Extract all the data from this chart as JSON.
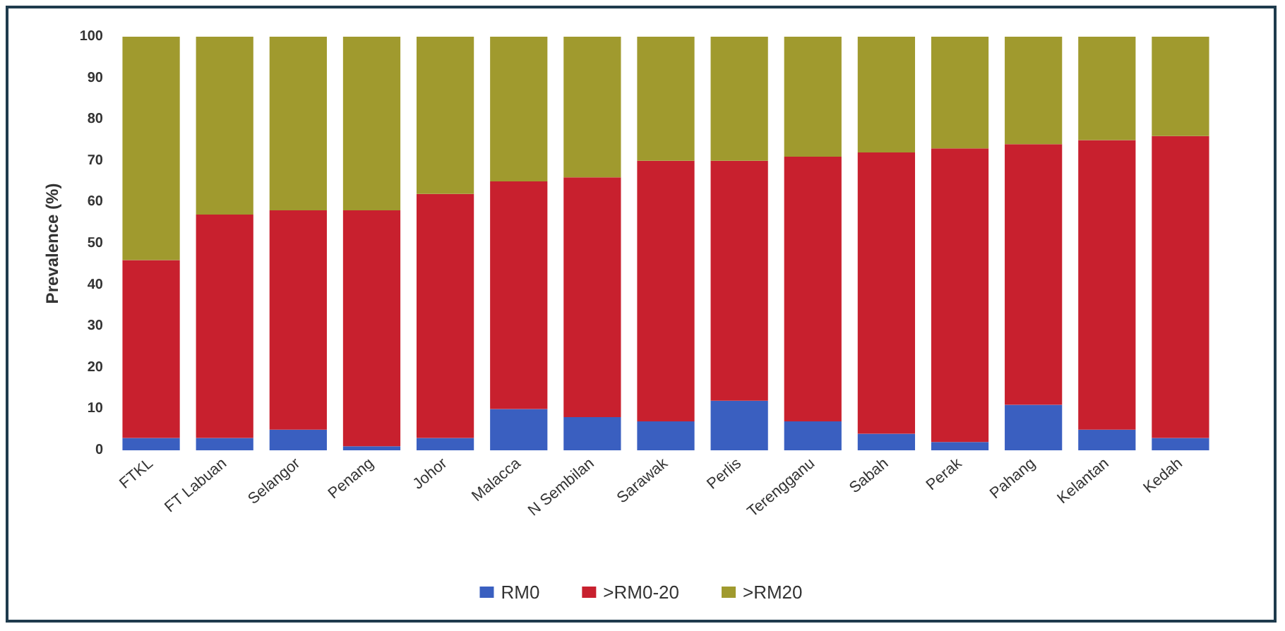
{
  "chart_data": {
    "type": "bar",
    "stacked": true,
    "ylabel": "Prevalence (%)",
    "categories": [
      "FTKL",
      "FT Labuan",
      "Selangor",
      "Penang",
      "Johor",
      "Malacca",
      "N Sembilan",
      "Sarawak",
      "Perlis",
      "Terengganu",
      "Sabah",
      "Perak",
      "Pahang",
      "Kelantan",
      "Kedah"
    ],
    "series": [
      {
        "name": "RM0",
        "color": "#3a5fc0",
        "values": [
          3,
          3,
          5,
          1,
          3,
          10,
          8,
          7,
          12,
          7,
          4,
          2,
          11,
          5,
          3
        ]
      },
      {
        "name": ">RM0-20",
        "color": "#c8202e",
        "values": [
          43,
          54,
          53,
          57,
          59,
          55,
          58,
          63,
          58,
          64,
          68,
          71,
          63,
          70,
          73
        ]
      },
      {
        "name": ">RM20",
        "color": "#a09a2e",
        "values": [
          54,
          43,
          42,
          42,
          38,
          35,
          34,
          30,
          30,
          29,
          28,
          27,
          26,
          25,
          24
        ]
      }
    ],
    "ylim": [
      0,
      100
    ],
    "yticks": [
      0,
      10,
      20,
      30,
      40,
      50,
      60,
      70,
      80,
      90,
      100
    ],
    "grid": false,
    "legend": "bottom"
  }
}
